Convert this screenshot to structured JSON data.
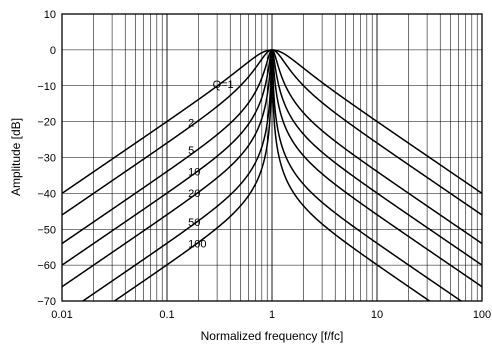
{
  "chart_data": {
    "type": "line",
    "title": "",
    "xlabel": "Normalized frequency [f/fc]",
    "ylabel": "Amplitude [dB]",
    "x_scale": "log",
    "xlim": [
      0.01,
      100
    ],
    "ylim": [
      -70,
      10
    ],
    "grid": true,
    "x_ticks": [
      0.01,
      0.1,
      1,
      10,
      100
    ],
    "x_tick_labels": [
      "0.01",
      "0.1",
      "1",
      "10",
      "100"
    ],
    "y_ticks": [
      10,
      0,
      -10,
      -20,
      -30,
      -40,
      -50,
      -60,
      -70
    ],
    "y_tick_labels": [
      "10",
      "0",
      "−10",
      "−20",
      "−30",
      "−40",
      "−50",
      "−60",
      "−70"
    ],
    "curve_labels": [
      {
        "text": "Q=1",
        "q": 1
      },
      {
        "text": "2",
        "q": 2
      },
      {
        "text": "5",
        "q": 5
      },
      {
        "text": "10",
        "q": 10
      },
      {
        "text": "20",
        "q": 20
      },
      {
        "text": "50",
        "q": 50
      },
      {
        "text": "100",
        "q": 100
      }
    ],
    "series": [
      {
        "q": 1,
        "x": [
          0.01,
          0.1,
          0.5,
          1,
          2,
          10,
          100
        ],
        "y": [
          -40,
          -20,
          -4.4,
          0,
          -4.4,
          -20,
          -40
        ]
      },
      {
        "q": 2,
        "x": [
          0.01,
          0.1,
          0.5,
          1,
          2,
          10,
          100
        ],
        "y": [
          -46,
          -26,
          -9.8,
          0,
          -9.8,
          -26,
          -46
        ]
      },
      {
        "q": 5,
        "x": [
          0.01,
          0.1,
          0.5,
          1,
          2,
          10,
          100
        ],
        "y": [
          -54,
          -34,
          -17.5,
          0,
          -17.5,
          -34,
          -54
        ]
      },
      {
        "q": 10,
        "x": [
          0.01,
          0.1,
          0.5,
          1,
          2,
          10,
          100
        ],
        "y": [
          -60,
          -40,
          -23.5,
          0,
          -23.5,
          -40,
          -60
        ]
      },
      {
        "q": 20,
        "x": [
          0.01,
          0.1,
          0.5,
          1,
          2,
          10,
          100
        ],
        "y": [
          -66,
          -46,
          -29.5,
          0,
          -29.5,
          -46,
          -66
        ]
      },
      {
        "q": 50,
        "x": [
          0.01,
          0.1,
          0.5,
          1,
          2,
          10,
          100
        ],
        "y": [
          -74,
          -54,
          -37.5,
          0,
          -37.5,
          -54,
          -74
        ]
      },
      {
        "q": 100,
        "x": [
          0.01,
          0.1,
          0.5,
          1,
          2,
          10,
          100
        ],
        "y": [
          -80,
          -60,
          -43.5,
          0,
          -43.5,
          -60,
          -80
        ]
      }
    ]
  }
}
